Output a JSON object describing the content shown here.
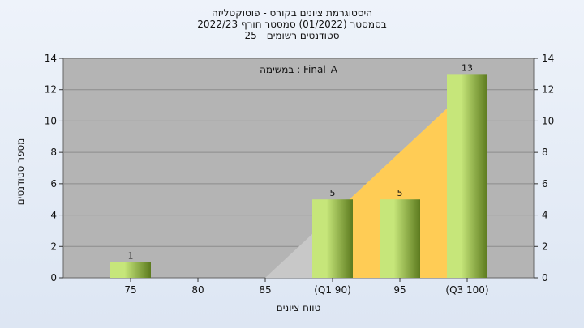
{
  "title_lines": [
    "היסטוגרמת ציונים בקורס - פוטוקטליזה",
    "בסמסטר  (01/2022)  סמסטר חורף 2022/23",
    "סטודנטים רשומים - 25"
  ],
  "annotation": "במשימה : Final_A",
  "colors": {
    "plot_bg": "#b4b4b4",
    "bar_light": "#c6e67a",
    "bar_dark": "#5c7a1e",
    "area": "#ffcc55",
    "area_gray": "#c8c8c8"
  },
  "chart_data": {
    "type": "bar",
    "title": "היסטוגרמת ציונים בקורס - פוטוקטליזה",
    "xlabel": "טווח ציונים",
    "ylabel": "מספר סטודנטים",
    "categories": [
      "75",
      "80",
      "85",
      "(Q1 90)",
      "95",
      "(Q3 100)"
    ],
    "values": [
      1,
      0,
      0,
      5,
      5,
      13
    ],
    "data_labels": [
      "1",
      "",
      "",
      "5",
      "5",
      "13"
    ],
    "cumulative_area": {
      "x": [
        "85",
        "(Q1 90)",
        "95",
        "(Q3 100)"
      ],
      "y": [
        0,
        4,
        8,
        12
      ]
    },
    "ylim": [
      0,
      14
    ],
    "yticks": [
      0,
      2,
      4,
      6,
      8,
      10,
      12,
      14
    ],
    "grid": true
  }
}
